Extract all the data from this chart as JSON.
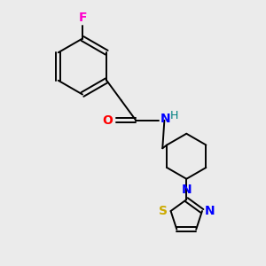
{
  "background_color": "#ebebeb",
  "atom_colors": {
    "N": "#0000ff",
    "O": "#ff0000",
    "F": "#ff00cc",
    "S": "#ccaa00",
    "H": "#008080"
  },
  "line_color": "#000000",
  "figsize": [
    3.0,
    3.0
  ],
  "dpi": 100
}
